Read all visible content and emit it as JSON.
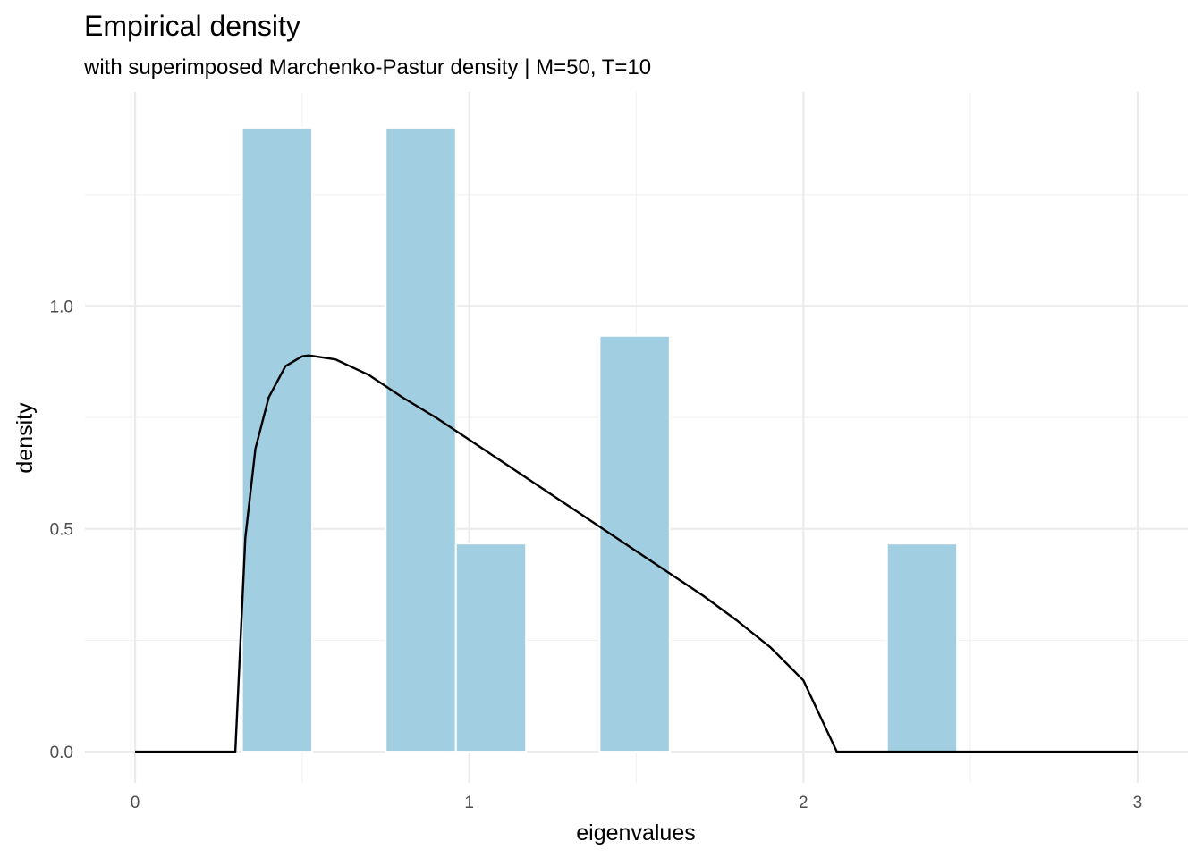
{
  "chart_data": {
    "type": "bar",
    "title": "Empirical density",
    "subtitle": "with superimposed Marchenko-Pastur density | M=50, T=10",
    "xlabel": "eigenvalues",
    "ylabel": "density",
    "xlim": [
      -0.15,
      3.15
    ],
    "ylim": [
      -0.07,
      1.48
    ],
    "x_ticks": [
      0,
      1,
      2,
      3
    ],
    "x_tick_labels": [
      "0",
      "1",
      "2",
      "3"
    ],
    "x_minor": [
      0.5,
      1.5,
      2.5
    ],
    "y_ticks": [
      0,
      0.5,
      1
    ],
    "y_tick_labels": [
      "0.0",
      "0.5",
      "1.0"
    ],
    "y_minor": [
      0.25,
      0.75,
      1.25
    ],
    "grid": true,
    "bar_color": "#a1cfe1",
    "bar_edge_color": "#ffffff",
    "line_color": "#000000",
    "histogram": [
      {
        "x0": 0.32,
        "x1": 0.53,
        "value": 1.4
      },
      {
        "x0": 0.75,
        "x1": 0.96,
        "value": 1.4
      },
      {
        "x0": 0.96,
        "x1": 1.17,
        "value": 0.467
      },
      {
        "x0": 1.39,
        "x1": 1.6,
        "value": 0.933
      },
      {
        "x0": 2.25,
        "x1": 2.46,
        "value": 0.467
      }
    ],
    "series": [
      {
        "x": [
          0,
          0.1,
          0.2,
          0.3,
          0.33,
          0.36,
          0.4,
          0.45,
          0.5,
          0.52,
          0.6,
          0.7,
          0.8,
          0.9,
          1.0,
          1.1,
          1.2,
          1.3,
          1.4,
          1.5,
          1.6,
          1.7,
          1.8,
          1.9,
          2.0,
          2.1,
          2.2,
          2.4,
          2.6,
          2.8,
          3.0
        ],
        "values": [
          0,
          0,
          0,
          0,
          0.48,
          0.68,
          0.795,
          0.865,
          0.887,
          0.889,
          0.88,
          0.845,
          0.795,
          0.75,
          0.7,
          0.65,
          0.6,
          0.55,
          0.5,
          0.45,
          0.4,
          0.35,
          0.295,
          0.235,
          0.16,
          0,
          0,
          0,
          0,
          0,
          0
        ]
      }
    ]
  }
}
